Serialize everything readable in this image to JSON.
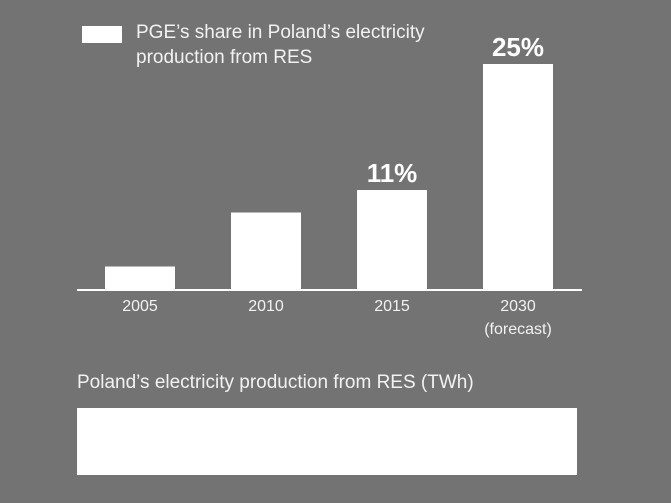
{
  "chart_data": {
    "type": "bar",
    "categories": [
      "2005",
      "2010",
      "2015",
      "2030"
    ],
    "category_notes": [
      "",
      "",
      "",
      "(forecast)"
    ],
    "values": [
      2.5,
      8.5,
      11,
      25
    ],
    "data_labels": [
      "",
      "",
      "11%",
      "25%"
    ],
    "legend": [
      "PGE’s share in Poland’s electricity production from RES"
    ],
    "legend_position": "top-left",
    "ylim": [
      0,
      25
    ],
    "grid": false,
    "colors": {
      "bar": "#ffffff",
      "background": "#737373",
      "axis": "#ffffff"
    }
  },
  "bottom": {
    "label": "Poland’s electricity production from RES (TWh)"
  }
}
